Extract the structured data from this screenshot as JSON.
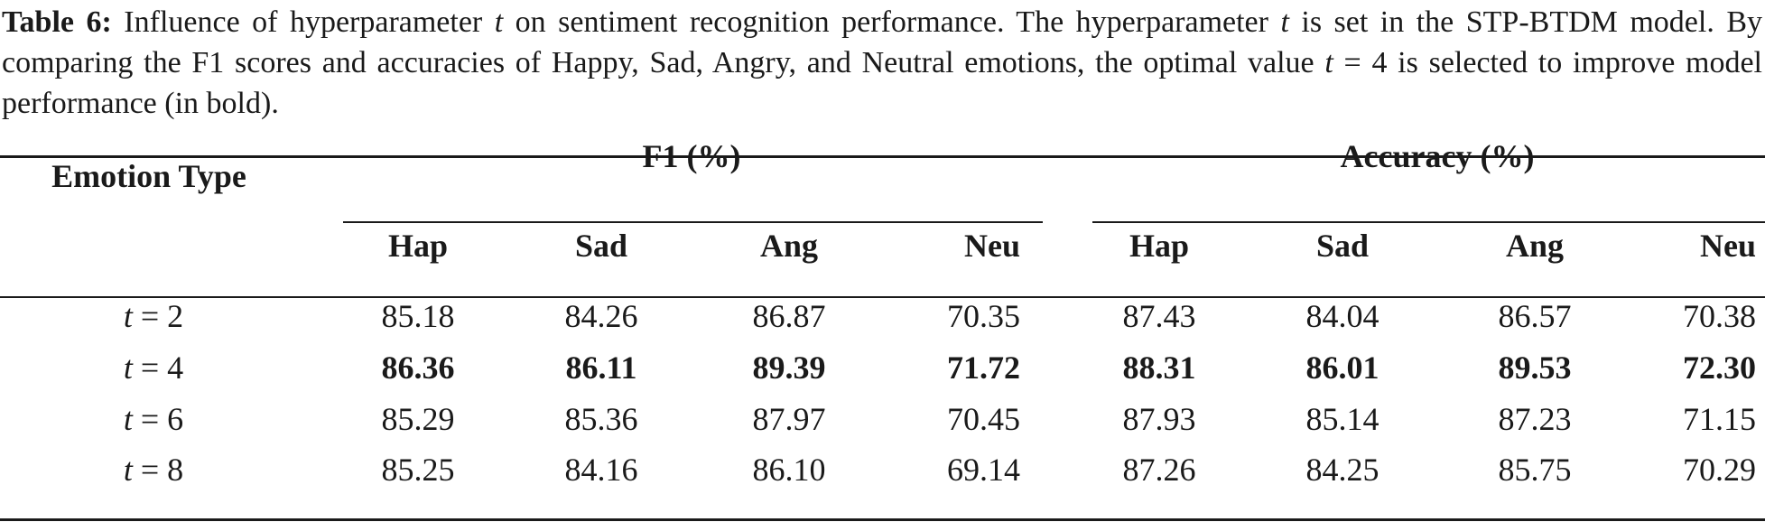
{
  "caption": {
    "label": "Table 6:",
    "text_1": " Influence of hyperparameter ",
    "var_1": "t",
    "text_2": " on sentiment recognition performance. The hyperparameter ",
    "var_2": "t",
    "text_3": " is set in the STP-BTDM model. By comparing the F1 scores and accuracies of Happy, Sad, Angry, and Neutral emotions, the optimal value ",
    "var_3": "t",
    "text_4": " = 4 is selected to improve model performance (in bold)."
  },
  "table": {
    "row_header": "Emotion Type",
    "group_f1": "F1 (%)",
    "group_acc": "Accuracy (%)",
    "columns": [
      "Hap",
      "Sad",
      "Ang",
      "Neu",
      "Hap",
      "Sad",
      "Ang",
      "Neu"
    ],
    "rows": [
      {
        "var": "t",
        "eq": " = 2",
        "values": [
          "85.18",
          "84.26",
          "86.87",
          "70.35",
          "87.43",
          "84.04",
          "86.57",
          "70.38"
        ],
        "bold": false
      },
      {
        "var": "t",
        "eq": " = 4",
        "values": [
          "86.36",
          "86.11",
          "89.39",
          "71.72",
          "88.31",
          "86.01",
          "89.53",
          "72.30"
        ],
        "bold": true
      },
      {
        "var": "t",
        "eq": " = 6",
        "values": [
          "85.29",
          "85.36",
          "87.97",
          "70.45",
          "87.93",
          "85.14",
          "87.23",
          "71.15"
        ],
        "bold": false
      },
      {
        "var": "t",
        "eq": " = 8",
        "values": [
          "85.25",
          "84.16",
          "86.10",
          "69.14",
          "87.26",
          "84.25",
          "85.75",
          "70.29"
        ],
        "bold": false
      }
    ]
  }
}
